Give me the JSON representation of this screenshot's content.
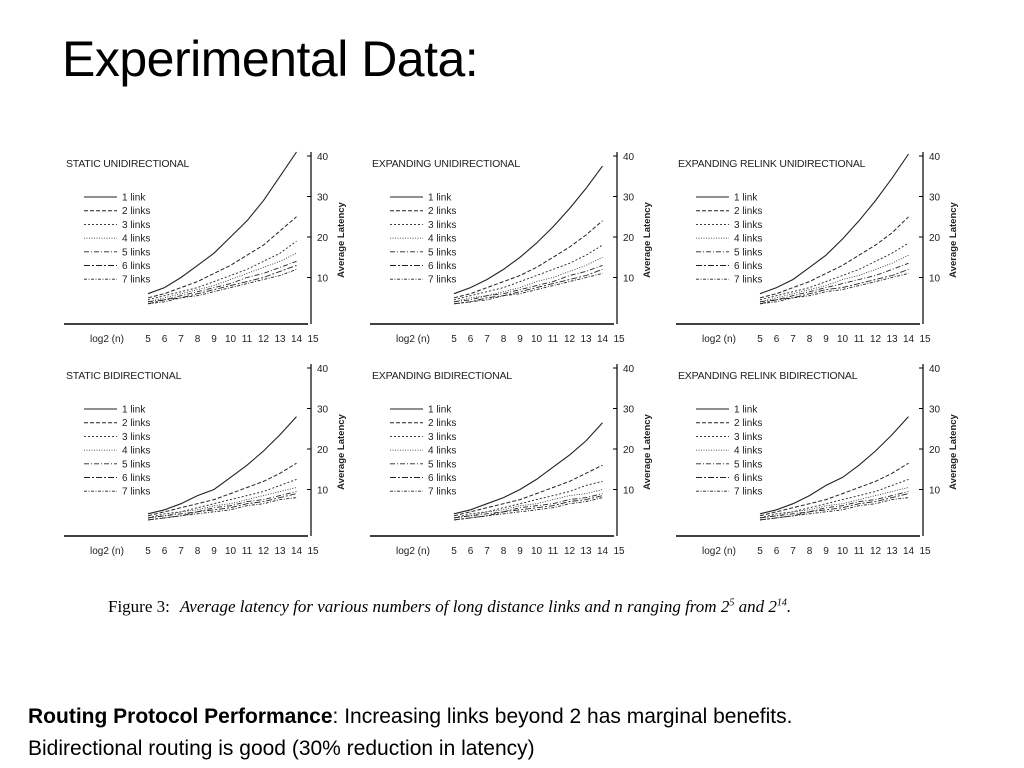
{
  "slide": {
    "title": "Experimental Data:",
    "caption": {
      "label": "Figure 3:",
      "text": "Average latency for various numbers of long distance links and n ranging from 2",
      "exp1": "5",
      "mid": " and 2",
      "exp2": "14",
      "end": "."
    },
    "summary": {
      "bold": "Routing Protocol Performance",
      "rest": ": Increasing links beyond 2 has marginal benefits.",
      "line2": "Bidirectional routing is good (30% reduction in latency)"
    }
  },
  "chart_data": [
    {
      "type": "line",
      "title": "STATIC   UNIDIRECTIONAL",
      "xlabel": "log2 (n)",
      "ylabel": "Average Latency",
      "x": [
        5,
        6,
        7,
        8,
        9,
        10,
        11,
        12,
        13,
        14
      ],
      "xticks": [
        5,
        6,
        7,
        8,
        9,
        10,
        11,
        12,
        13,
        14,
        15
      ],
      "ylim": [
        0,
        40
      ],
      "yticks": [
        10,
        20,
        30,
        40
      ],
      "legend": "left",
      "series": [
        {
          "name": "1 link",
          "values": [
            6,
            7.5,
            10,
            13,
            16,
            20,
            24,
            29,
            35,
            41
          ]
        },
        {
          "name": "2 links",
          "values": [
            5,
            6,
            7.5,
            9,
            11,
            13,
            15.5,
            18,
            21.5,
            25
          ]
        },
        {
          "name": "3 links",
          "values": [
            4.5,
            5.5,
            6.5,
            7.5,
            9,
            10.5,
            12,
            14,
            16,
            19
          ]
        },
        {
          "name": "4 links",
          "values": [
            4,
            5,
            6,
            7,
            8,
            9.5,
            11,
            12.5,
            14,
            16
          ]
        },
        {
          "name": "5 links",
          "values": [
            4,
            4.5,
            5.5,
            6.5,
            7.5,
            8.5,
            10,
            11,
            12.5,
            14
          ]
        },
        {
          "name": "6 links",
          "values": [
            3.5,
            4.5,
            5,
            6,
            7,
            8,
            9,
            10,
            11.5,
            13
          ]
        },
        {
          "name": "7 links",
          "values": [
            3.5,
            4,
            5,
            5.5,
            6.5,
            7.5,
            8.5,
            9.5,
            10.5,
            12
          ]
        }
      ]
    },
    {
      "type": "line",
      "title": "EXPANDING   UNIDIRECTIONAL",
      "xlabel": "log2 (n)",
      "ylabel": "Average Latency",
      "x": [
        5,
        6,
        7,
        8,
        9,
        10,
        11,
        12,
        13,
        14
      ],
      "xticks": [
        5,
        6,
        7,
        8,
        9,
        10,
        11,
        12,
        13,
        14,
        15
      ],
      "ylim": [
        0,
        40
      ],
      "yticks": [
        10,
        20,
        30,
        40
      ],
      "legend": "left",
      "series": [
        {
          "name": "1 link",
          "values": [
            6,
            7.5,
            9.5,
            12,
            15,
            18.5,
            22.5,
            27,
            32,
            37.5
          ]
        },
        {
          "name": "2 links",
          "values": [
            5,
            6,
            7.5,
            9,
            10.5,
            12.5,
            15,
            17.5,
            20.5,
            24
          ]
        },
        {
          "name": "3 links",
          "values": [
            4.5,
            5.5,
            6.5,
            7.5,
            9,
            10.5,
            12,
            13.5,
            15.5,
            18
          ]
        },
        {
          "name": "4 links",
          "values": [
            4,
            5,
            5.5,
            6.5,
            7.5,
            9,
            10,
            11.5,
            13,
            15
          ]
        },
        {
          "name": "5 links",
          "values": [
            4,
            4.5,
            5.5,
            6,
            7,
            8,
            9,
            10.5,
            11.5,
            13
          ]
        },
        {
          "name": "6 links",
          "values": [
            3.5,
            4,
            5,
            5.5,
            6.5,
            7.5,
            8.5,
            9.5,
            10.5,
            12
          ]
        },
        {
          "name": "7 links",
          "values": [
            3.5,
            4,
            4.5,
            5.5,
            6,
            7,
            8,
            9,
            10,
            11
          ]
        }
      ]
    },
    {
      "type": "line",
      "title": "EXPANDING  RELINK  UNIDIRECTIONAL",
      "xlabel": "log2 (n)",
      "ylabel": "Average Latency",
      "x": [
        5,
        6,
        7,
        8,
        9,
        10,
        11,
        12,
        13,
        14
      ],
      "xticks": [
        5,
        6,
        7,
        8,
        9,
        10,
        11,
        12,
        13,
        14,
        15
      ],
      "ylim": [
        0,
        40
      ],
      "yticks": [
        10,
        20,
        30,
        40
      ],
      "legend": "left",
      "series": [
        {
          "name": "1 link",
          "values": [
            6,
            7.5,
            9.5,
            12.5,
            15.5,
            19.5,
            24,
            29,
            34.5,
            40.5
          ]
        },
        {
          "name": "2 links",
          "values": [
            5,
            6,
            7.5,
            9,
            11,
            13,
            15.5,
            18,
            21,
            25
          ]
        },
        {
          "name": "3 links",
          "values": [
            4.5,
            5.5,
            6.5,
            7.5,
            9,
            10.5,
            12,
            14,
            16,
            18.5
          ]
        },
        {
          "name": "4 links",
          "values": [
            4,
            5,
            6,
            7,
            8,
            9.5,
            10.5,
            12,
            13.5,
            15.5
          ]
        },
        {
          "name": "5 links",
          "values": [
            4,
            4.5,
            5.5,
            6.5,
            7.5,
            8.5,
            9.5,
            10.5,
            12,
            13.5
          ]
        },
        {
          "name": "6 links",
          "values": [
            3.5,
            4.5,
            5,
            6,
            7,
            7.5,
            8.5,
            9.5,
            10.5,
            12
          ]
        },
        {
          "name": "7 links",
          "values": [
            3.5,
            4,
            5,
            5.5,
            6.5,
            7,
            8,
            9,
            10,
            11
          ]
        }
      ]
    },
    {
      "type": "line",
      "title": "STATIC   BIDIRECTIONAL",
      "xlabel": "log2 (n)",
      "ylabel": "Average Latency",
      "x": [
        5,
        6,
        7,
        8,
        9,
        10,
        11,
        12,
        13,
        14
      ],
      "xticks": [
        5,
        6,
        7,
        8,
        9,
        10,
        11,
        12,
        13,
        14,
        15
      ],
      "ylim": [
        0,
        40
      ],
      "yticks": [
        10,
        20,
        30,
        40
      ],
      "legend": "left",
      "series": [
        {
          "name": "1 link",
          "values": [
            4,
            5,
            6.5,
            8.5,
            10,
            13,
            16,
            19.5,
            23.5,
            28
          ]
        },
        {
          "name": "2 links",
          "values": [
            3.5,
            4.5,
            5.5,
            6.5,
            7.5,
            9,
            10.5,
            12,
            14,
            16.5
          ]
        },
        {
          "name": "3 links",
          "values": [
            3,
            4,
            4.5,
            5.5,
            6.5,
            7.5,
            8.5,
            9.5,
            11,
            12.5
          ]
        },
        {
          "name": "4 links",
          "values": [
            3,
            3.5,
            4.5,
            5,
            6,
            6.5,
            7.5,
            8.5,
            9.5,
            10.5
          ]
        },
        {
          "name": "5 links",
          "values": [
            3,
            3.5,
            4,
            4.5,
            5.5,
            6,
            7,
            7.5,
            8.5,
            9.5
          ]
        },
        {
          "name": "6 links",
          "values": [
            2.5,
            3,
            3.5,
            4.5,
            5,
            5.5,
            6.5,
            7,
            8,
            9
          ]
        },
        {
          "name": "7 links",
          "values": [
            2.5,
            3,
            3.5,
            4,
            4.5,
            5,
            6,
            6.5,
            7.5,
            8
          ]
        }
      ]
    },
    {
      "type": "line",
      "title": "EXPANDING   BIDIRECTIONAL",
      "xlabel": "log2 (n)",
      "ylabel": "Average Latency",
      "x": [
        5,
        6,
        7,
        8,
        9,
        10,
        11,
        12,
        13,
        14
      ],
      "xticks": [
        5,
        6,
        7,
        8,
        9,
        10,
        11,
        12,
        13,
        14,
        15
      ],
      "ylim": [
        0,
        40
      ],
      "yticks": [
        10,
        20,
        30,
        40
      ],
      "legend": "left",
      "series": [
        {
          "name": "1 link",
          "values": [
            4,
            5,
            6.5,
            8,
            10,
            12.5,
            15.5,
            18.5,
            22,
            26.5
          ]
        },
        {
          "name": "2 links",
          "values": [
            3.5,
            4.5,
            5.5,
            6.5,
            7.5,
            9,
            10.5,
            12,
            14,
            16
          ]
        },
        {
          "name": "3 links",
          "values": [
            3,
            4,
            4.5,
            5.5,
            6.5,
            7.5,
            8.5,
            9.5,
            11,
            12
          ]
        },
        {
          "name": "4 links",
          "values": [
            3,
            3.5,
            4.5,
            5,
            6,
            6.5,
            7.5,
            8.5,
            9,
            10
          ]
        },
        {
          "name": "5 links",
          "values": [
            3,
            3.5,
            4,
            4.5,
            5.5,
            6,
            6.5,
            7.5,
            8,
            9
          ]
        },
        {
          "name": "6 links",
          "values": [
            2.5,
            3,
            3.5,
            4.5,
            5,
            5.5,
            6,
            7,
            7.5,
            8.5
          ]
        },
        {
          "name": "7 links",
          "values": [
            2.5,
            3,
            3.5,
            4,
            4.5,
            5,
            5.5,
            6.5,
            7,
            8
          ]
        }
      ]
    },
    {
      "type": "line",
      "title": "EXPANDING  RELINK  BIDIRECTIONAL",
      "xlabel": "log2 (n)",
      "ylabel": "Average Latency",
      "x": [
        5,
        6,
        7,
        8,
        9,
        10,
        11,
        12,
        13,
        14
      ],
      "xticks": [
        5,
        6,
        7,
        8,
        9,
        10,
        11,
        12,
        13,
        14,
        15
      ],
      "ylim": [
        0,
        40
      ],
      "yticks": [
        10,
        20,
        30,
        40
      ],
      "legend": "left",
      "series": [
        {
          "name": "1 link",
          "values": [
            4,
            5,
            6.5,
            8.5,
            11,
            13,
            16,
            19.5,
            23.5,
            28
          ]
        },
        {
          "name": "2 links",
          "values": [
            3.5,
            4.5,
            5.5,
            6.5,
            7.5,
            9,
            10.5,
            12,
            14,
            16.5
          ]
        },
        {
          "name": "3 links",
          "values": [
            3,
            4,
            4.5,
            5.5,
            6.5,
            7.5,
            8.5,
            9.5,
            11,
            12.5
          ]
        },
        {
          "name": "4 links",
          "values": [
            3,
            3.5,
            4.5,
            5,
            6,
            6.5,
            7.5,
            8.5,
            9.5,
            10.5
          ]
        },
        {
          "name": "5 links",
          "values": [
            3,
            3.5,
            4,
            4.5,
            5.5,
            6,
            7,
            7.5,
            8.5,
            9.5
          ]
        },
        {
          "name": "6 links",
          "values": [
            2.5,
            3,
            3.5,
            4.5,
            5,
            5.5,
            6.5,
            7,
            8,
            9
          ]
        },
        {
          "name": "7 links",
          "values": [
            2.5,
            3,
            3.5,
            4,
            4.5,
            5,
            6,
            6.5,
            7.5,
            8
          ]
        }
      ]
    }
  ]
}
